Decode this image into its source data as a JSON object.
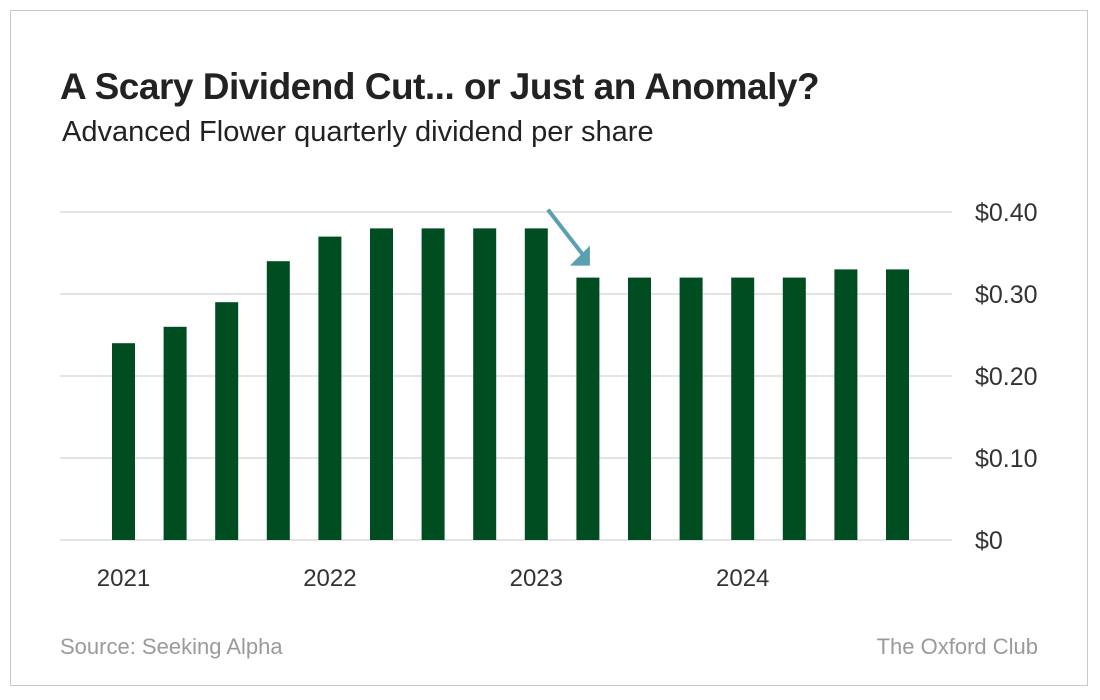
{
  "chart_data": {
    "type": "bar",
    "title": "A Scary Dividend Cut... or Just an Anomaly?",
    "subtitle": "Advanced Flower quarterly dividend per share",
    "values": [
      0.24,
      0.26,
      0.29,
      0.34,
      0.37,
      0.38,
      0.38,
      0.38,
      0.38,
      0.32,
      0.32,
      0.32,
      0.32,
      0.32,
      0.33,
      0.33
    ],
    "x_tick_labels": [
      {
        "label": "2021",
        "bar_index": 0
      },
      {
        "label": "2022",
        "bar_index": 4
      },
      {
        "label": "2023",
        "bar_index": 8
      },
      {
        "label": "2024",
        "bar_index": 12
      }
    ],
    "y_ticks": [
      0,
      0.1,
      0.2,
      0.3,
      0.4
    ],
    "y_tick_labels": [
      "$0",
      "$0.10",
      "$0.20",
      "$0.30",
      "$0.40"
    ],
    "ylim": [
      0,
      0.4
    ],
    "y_axis_side": "right",
    "grid": true,
    "annotation": {
      "type": "arrow",
      "points_to_bar_index": 9
    },
    "colors": {
      "bar": "#004d22",
      "arrow": "#5aa0b0",
      "grid": "#d4d4d4"
    }
  },
  "footer": {
    "source": "Source: Seeking Alpha",
    "brand": "The Oxford Club"
  }
}
